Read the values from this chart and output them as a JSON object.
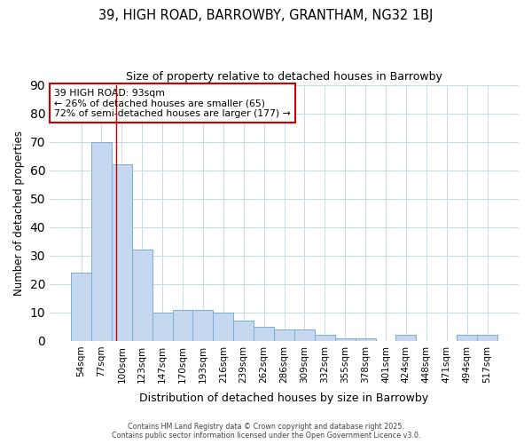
{
  "title1": "39, HIGH ROAD, BARROWBY, GRANTHAM, NG32 1BJ",
  "title2": "Size of property relative to detached houses in Barrowby",
  "xlabel": "Distribution of detached houses by size in Barrowby",
  "ylabel": "Number of detached properties",
  "categories": [
    "54sqm",
    "77sqm",
    "100sqm",
    "123sqm",
    "147sqm",
    "170sqm",
    "193sqm",
    "216sqm",
    "239sqm",
    "262sqm",
    "286sqm",
    "309sqm",
    "332sqm",
    "355sqm",
    "378sqm",
    "401sqm",
    "424sqm",
    "448sqm",
    "471sqm",
    "494sqm",
    "517sqm"
  ],
  "values": [
    24,
    70,
    62,
    32,
    10,
    11,
    11,
    10,
    7,
    5,
    4,
    4,
    2,
    1,
    1,
    0,
    2,
    0,
    0,
    2,
    2
  ],
  "bar_color": "#c5d8f0",
  "bar_edge_color": "#7badd4",
  "background_color": "#ffffff",
  "plot_bg_color": "#ffffff",
  "grid_color": "#c8d8ec",
  "red_line_x": 1.72,
  "annotation_title": "39 HIGH ROAD: 93sqm",
  "annotation_line1": "← 26% of detached houses are smaller (65)",
  "annotation_line2": "72% of semi-detached houses are larger (177) →",
  "annotation_box_color": "#ffffff",
  "annotation_box_edge": "#cc0000",
  "red_line_color": "#cc0000",
  "ylim": [
    0,
    90
  ],
  "yticks": [
    0,
    10,
    20,
    30,
    40,
    50,
    60,
    70,
    80,
    90
  ],
  "footer1": "Contains HM Land Registry data © Crown copyright and database right 2025.",
  "footer2": "Contains public sector information licensed under the Open Government Licence v3.0."
}
